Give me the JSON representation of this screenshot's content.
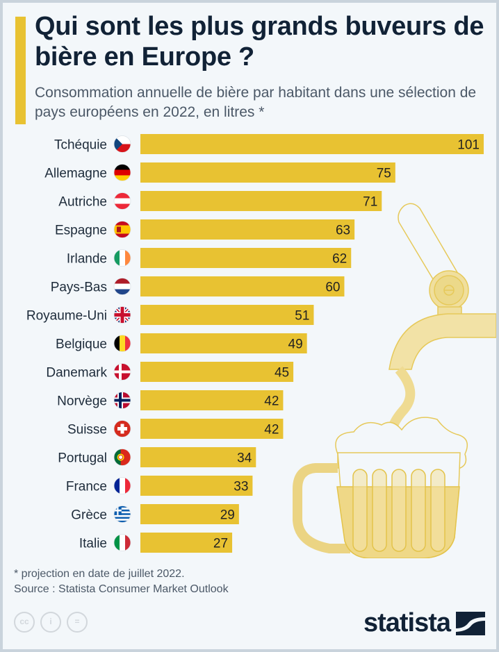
{
  "header": {
    "title": "Qui sont les plus grands buveurs de bière en Europe ?",
    "subtitle": "Consommation annuelle de bière par habitant dans une sélection de pays européens en 2022, en litres *"
  },
  "chart_data": {
    "type": "bar",
    "orientation": "horizontal",
    "title": "Qui sont les plus grands buveurs de bière en Europe ?",
    "subtitle": "Consommation annuelle de bière par habitant dans une sélection de pays européens en 2022, en litres *",
    "xlabel": "",
    "ylabel": "",
    "unit": "litres",
    "categories": [
      "Tchéquie",
      "Allemagne",
      "Autriche",
      "Espagne",
      "Irlande",
      "Pays-Bas",
      "Royaume-Uni",
      "Belgique",
      "Danemark",
      "Norvège",
      "Suisse",
      "Portugal",
      "France",
      "Grèce",
      "Italie"
    ],
    "values": [
      101,
      75,
      71,
      63,
      62,
      60,
      51,
      49,
      45,
      42,
      42,
      34,
      33,
      29,
      27
    ],
    "flags": [
      "cz-flag-icon",
      "de-flag-icon",
      "at-flag-icon",
      "es-flag-icon",
      "ie-flag-icon",
      "nl-flag-icon",
      "uk-flag-icon",
      "be-flag-icon",
      "dk-flag-icon",
      "no-flag-icon",
      "ch-flag-icon",
      "pt-flag-icon",
      "fr-flag-icon",
      "gr-flag-icon",
      "it-flag-icon"
    ],
    "xlim": [
      0,
      101
    ],
    "grid": false,
    "legend": "none",
    "bar_color": "#e8c232"
  },
  "footer": {
    "note": "* projection en date de juillet 2022.",
    "source": "Source : Statista Consumer Market Outlook",
    "license_icons": [
      "cc-icon",
      "by-icon",
      "nd-icon"
    ],
    "logo": "statista"
  },
  "colors": {
    "accent": "#e8c232",
    "title": "#112236",
    "background": "#f3f7fa"
  }
}
